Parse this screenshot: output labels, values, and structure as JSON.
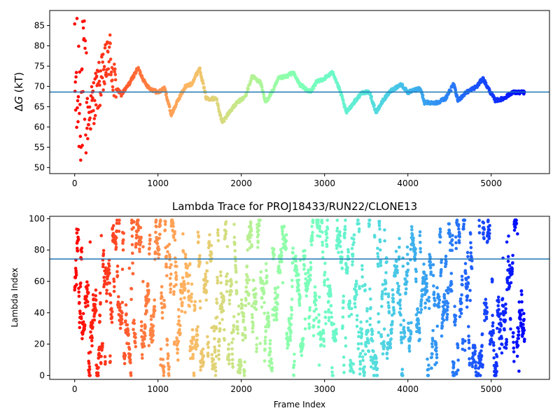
{
  "chart_data": [
    {
      "type": "scatter",
      "title": "",
      "xlabel": "",
      "ylabel": "ΔG (kT)",
      "ylabel_italic_symbol": "G",
      "xlim": [
        -300,
        5700
      ],
      "ylim": [
        48.5,
        88.7
      ],
      "xticks": [
        0,
        1000,
        2000,
        3000,
        4000,
        5000
      ],
      "xtick_labels": [
        "0",
        "1000",
        "2000",
        "3000",
        "4000",
        "5000"
      ],
      "yticks": [
        50,
        55,
        60,
        65,
        70,
        75,
        80,
        85
      ],
      "ytick_labels": [
        "50",
        "55",
        "60",
        "65",
        "70",
        "75",
        "80",
        "85"
      ],
      "hline": 68.6,
      "hline_color": "#1f77b4",
      "colormap": "rainbow (reversed along frame index: red at 0, violet at end)",
      "n_frames": 5400,
      "trace_keypoints": [
        [
          160,
          62.0
        ],
        [
          250,
          68.0
        ],
        [
          350,
          73.0
        ],
        [
          420,
          78.5
        ],
        [
          480,
          70.0
        ],
        [
          560,
          68.0
        ],
        [
          650,
          70.5
        ],
        [
          760,
          74.5
        ],
        [
          840,
          71.0
        ],
        [
          900,
          69.5
        ],
        [
          1000,
          68.5
        ],
        [
          1080,
          69.5
        ],
        [
          1160,
          63.0
        ],
        [
          1250,
          67.0
        ],
        [
          1330,
          70.0
        ],
        [
          1400,
          70.5
        ],
        [
          1500,
          74.5
        ],
        [
          1580,
          67.0
        ],
        [
          1700,
          67.0
        ],
        [
          1770,
          61.0
        ],
        [
          1850,
          63.5
        ],
        [
          1950,
          66.0
        ],
        [
          2050,
          67.5
        ],
        [
          2130,
          72.5
        ],
        [
          2230,
          71.0
        ],
        [
          2290,
          66.0
        ],
        [
          2380,
          69.0
        ],
        [
          2450,
          72.0
        ],
        [
          2550,
          72.5
        ],
        [
          2620,
          73.5
        ],
        [
          2700,
          70.5
        ],
        [
          2830,
          68.5
        ],
        [
          2900,
          71.0
        ],
        [
          3000,
          72.0
        ],
        [
          3100,
          73.5
        ],
        [
          3200,
          68.0
        ],
        [
          3260,
          63.5
        ],
        [
          3350,
          66.0
        ],
        [
          3450,
          68.5
        ],
        [
          3540,
          68.5
        ],
        [
          3620,
          63.5
        ],
        [
          3700,
          66.5
        ],
        [
          3800,
          69.0
        ],
        [
          3920,
          70.5
        ],
        [
          4000,
          68.5
        ],
        [
          4150,
          69.5
        ],
        [
          4200,
          66.0
        ],
        [
          4350,
          66.0
        ],
        [
          4450,
          67.0
        ],
        [
          4550,
          70.5
        ],
        [
          4600,
          66.5
        ],
        [
          4700,
          68.5
        ],
        [
          4830,
          70.0
        ],
        [
          4900,
          72.0
        ],
        [
          4950,
          70.0
        ],
        [
          5050,
          66.5
        ],
        [
          5150,
          67.0
        ],
        [
          5250,
          68.5
        ],
        [
          5400,
          68.5
        ]
      ],
      "early_scatter_range": [
        50,
        87.5
      ]
    },
    {
      "type": "scatter",
      "title": "Lambda Trace for PROJ18433/RUN22/CLONE13",
      "xlabel": "Frame Index",
      "ylabel": "Lambda Index",
      "xlim": [
        -300,
        5700
      ],
      "ylim": [
        -2.5,
        101.5
      ],
      "xticks": [
        0,
        1000,
        2000,
        3000,
        4000,
        5000
      ],
      "xtick_labels": [
        "0",
        "1000",
        "2000",
        "3000",
        "4000",
        "5000"
      ],
      "yticks": [
        0,
        20,
        40,
        60,
        80,
        100
      ],
      "ytick_labels": [
        "0",
        "20",
        "40",
        "60",
        "80",
        "100"
      ],
      "hline": 74.3,
      "hline_color": "#1f77b4",
      "colormap": "rainbow (reversed along frame index: red at 0, violet at end)",
      "n_frames": 5400,
      "value_range": [
        0,
        99
      ]
    }
  ]
}
